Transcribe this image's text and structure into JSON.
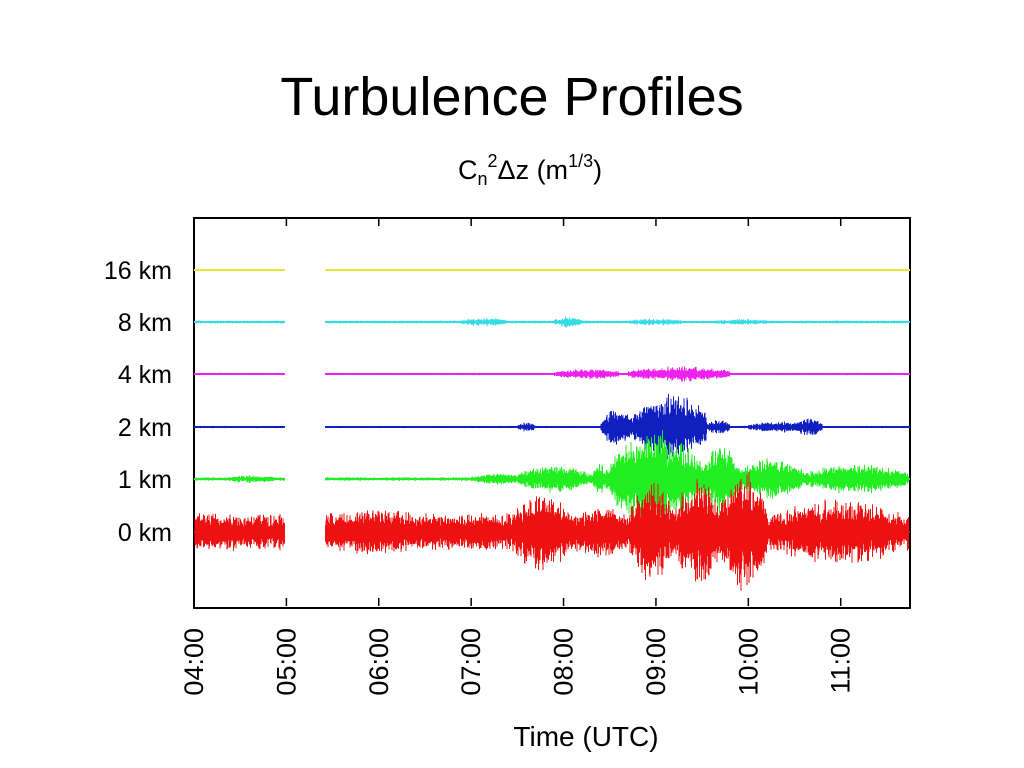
{
  "slide": {
    "title": "Turbulence Profiles"
  },
  "chart_data": {
    "type": "line",
    "subtitle": {
      "base": "C",
      "sub": "n",
      "sup1": "2",
      "mid": "Δz (m",
      "sup2": "1/3",
      "end": ")"
    },
    "xlabel": "Time (UTC)",
    "ylabel": "",
    "x_ticks": [
      "04:00",
      "05:00",
      "06:00",
      "07:00",
      "08:00",
      "09:00",
      "10:00",
      "11:00"
    ],
    "xlim_hours": [
      4.0,
      11.75
    ],
    "data_gap_hours": [
      4.98,
      5.42
    ],
    "grid": false,
    "legend": "none",
    "series": [
      {
        "name": "16 km",
        "color": "#e6e633",
        "baseline_amplitude": 0.01,
        "bursts": []
      },
      {
        "name": "8 km",
        "color": "#33dde6",
        "baseline_amplitude": 0.04,
        "bursts": [
          [
            6.9,
            7.4,
            0.12
          ],
          [
            7.9,
            8.2,
            0.15
          ],
          [
            8.7,
            9.3,
            0.1
          ],
          [
            9.6,
            10.3,
            0.08
          ]
        ]
      },
      {
        "name": "4 km",
        "color": "#ee22ee",
        "baseline_amplitude": 0.03,
        "bursts": [
          [
            7.9,
            8.6,
            0.15
          ],
          [
            8.7,
            9.8,
            0.2
          ]
        ]
      },
      {
        "name": "2 km",
        "color": "#1020c0",
        "baseline_amplitude": 0.03,
        "bursts": [
          [
            7.5,
            7.7,
            0.12
          ],
          [
            8.4,
            8.75,
            0.5
          ],
          [
            8.75,
            9.55,
            0.9
          ],
          [
            9.55,
            9.8,
            0.2
          ],
          [
            10.0,
            10.6,
            0.15
          ],
          [
            10.5,
            10.8,
            0.25
          ]
        ]
      },
      {
        "name": "1 km",
        "color": "#22ee22",
        "baseline_amplitude": 0.05,
        "bursts": [
          [
            4.35,
            4.9,
            0.1
          ],
          [
            7.0,
            7.6,
            0.15
          ],
          [
            7.5,
            8.3,
            0.35
          ],
          [
            8.3,
            8.5,
            0.4
          ],
          [
            8.5,
            9.5,
            1.25
          ],
          [
            9.5,
            9.9,
            0.9
          ],
          [
            9.9,
            10.6,
            0.55
          ],
          [
            10.6,
            11.75,
            0.4
          ]
        ]
      },
      {
        "name": "0 km",
        "color": "#ee1111",
        "baseline_amplitude": 0.5,
        "bursts": [
          [
            5.4,
            6.6,
            0.65
          ],
          [
            6.8,
            7.4,
            0.55
          ],
          [
            7.4,
            8.1,
            1.05
          ],
          [
            8.1,
            8.7,
            0.75
          ],
          [
            8.7,
            9.2,
            1.3
          ],
          [
            9.2,
            9.7,
            1.45
          ],
          [
            9.7,
            10.2,
            1.65
          ],
          [
            10.2,
            11.75,
            0.9
          ]
        ]
      }
    ]
  }
}
